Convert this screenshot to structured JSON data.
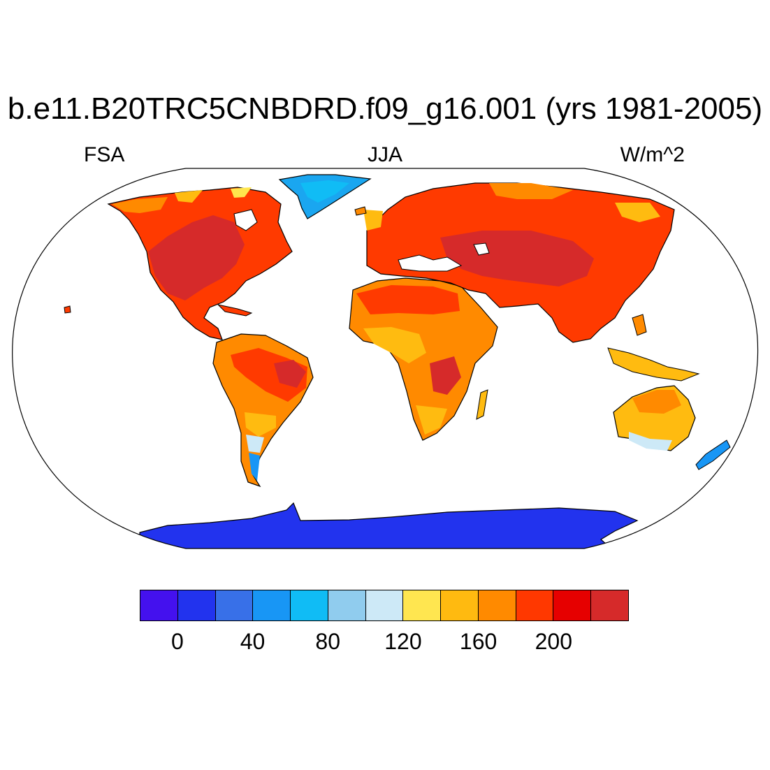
{
  "title": "b.e11.B20TRC5CNBDRD.f09_g16.001 (yrs 1981-2005)",
  "left_label": "FSA",
  "center_label": "JJA",
  "right_label": "W/m^2",
  "map": {
    "projection": "Robinson",
    "land_colors": {
      "antarctica": "#2233ee",
      "greenland": "#1aa6f0",
      "high_value": "#d62a2a",
      "warm": "#ff3a00",
      "orange": "#ff8a00",
      "amber": "#ffbb10",
      "yellow": "#ffe64d",
      "pale_blue": "#cde9f7"
    }
  },
  "colorbar": {
    "colors": [
      "#4411ee",
      "#2233ee",
      "#3870e8",
      "#1896f5",
      "#10bcf5",
      "#90ccee",
      "#cde9f7",
      "#ffe650",
      "#ffba10",
      "#ff8a00",
      "#ff3800",
      "#e60000",
      "#d62a2a"
    ],
    "tick_labels": [
      "0",
      "40",
      "80",
      "120",
      "160",
      "200"
    ],
    "tick_values": [
      0,
      40,
      80,
      120,
      160,
      200
    ],
    "levels": [
      -20,
      0,
      20,
      40,
      60,
      80,
      100,
      120,
      140,
      160,
      180,
      200,
      220,
      240
    ]
  }
}
